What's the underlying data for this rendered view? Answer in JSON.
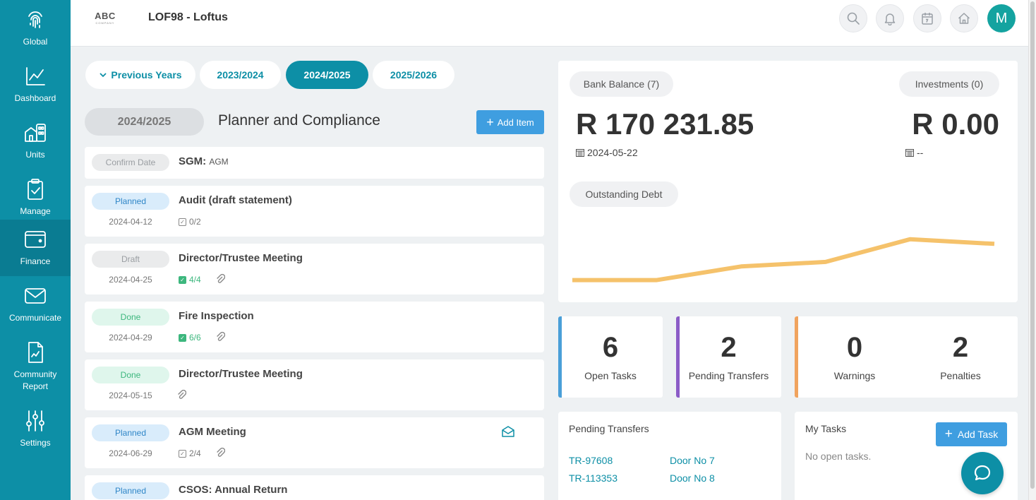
{
  "sidebar": {
    "items": [
      {
        "label": "Global",
        "icon": "fingerprint-icon"
      },
      {
        "label": "Dashboard",
        "icon": "line-chart-icon"
      },
      {
        "label": "Units",
        "icon": "building-icon"
      },
      {
        "label": "Manage",
        "icon": "clipboard-check-icon"
      },
      {
        "label": "Finance",
        "icon": "wallet-icon"
      },
      {
        "label": "Communicate",
        "icon": "envelope-icon"
      },
      {
        "label": "Community Report",
        "icon": "report-icon"
      },
      {
        "label": "Settings",
        "icon": "sliders-icon"
      }
    ],
    "active": "Finance"
  },
  "header": {
    "logo_text": "ABC",
    "logo_sub": "COMPANY",
    "title": "LOF98 - Loftus",
    "avatar": "M"
  },
  "year_tabs": [
    "Previous Years",
    "2023/2024",
    "2024/2025",
    "2025/2026"
  ],
  "planner": {
    "year": "2024/2025",
    "title": "Planner and Compliance",
    "add_label": "Add Item",
    "items": [
      {
        "status": "Confirm Date",
        "title": "SGM:",
        "subtitle": "AGM"
      },
      {
        "status": "Planned",
        "title": "Audit (draft statement)",
        "date": "2024-04-12",
        "checks": "0/2"
      },
      {
        "status": "Draft",
        "title": "Director/Trustee Meeting",
        "date": "2024-04-25",
        "checks": "4/4"
      },
      {
        "status": "Done",
        "title": "Fire Inspection",
        "date": "2024-04-29",
        "checks": "6/6"
      },
      {
        "status": "Done",
        "title": "Director/Trustee Meeting",
        "date": "2024-05-15"
      },
      {
        "status": "Planned",
        "title": "AGM Meeting",
        "date": "2024-06-29",
        "checks": "2/4"
      },
      {
        "status": "Planned",
        "title": "CSOS: Annual Return"
      }
    ]
  },
  "finance": {
    "bank_label": "Bank Balance (7)",
    "bank_amount": "R 170 231.85",
    "bank_date": "2024-05-22",
    "investments_label": "Investments (0)",
    "investments_amount": "R 0.00",
    "investments_date": "--",
    "debt_label": "Outstanding Debt",
    "line_color": "#f5c26b"
  },
  "chart_data": {
    "type": "line",
    "title": "Outstanding Debt",
    "series": [
      {
        "values": [
          1,
          1,
          4,
          5,
          10,
          9
        ]
      }
    ],
    "ylim": [
      0,
      12
    ]
  },
  "stats": [
    {
      "value": "6",
      "label": "Open Tasks",
      "color": "#4a9fd8"
    },
    {
      "value": "2",
      "label": "Pending Transfers",
      "color": "#8b5cc7"
    },
    {
      "value": "0",
      "label": "Warnings",
      "color": "#f0a35e"
    },
    {
      "value": "2",
      "label": "Penalties"
    }
  ],
  "pending_transfers": {
    "title": "Pending Transfers",
    "rows": [
      {
        "ref": "TR-97608",
        "unit": "Door No 7"
      },
      {
        "ref": "TR-113353",
        "unit": "Door No 8"
      }
    ]
  },
  "my_tasks": {
    "title": "My Tasks",
    "add_label": "Add Task",
    "empty": "No open tasks."
  }
}
